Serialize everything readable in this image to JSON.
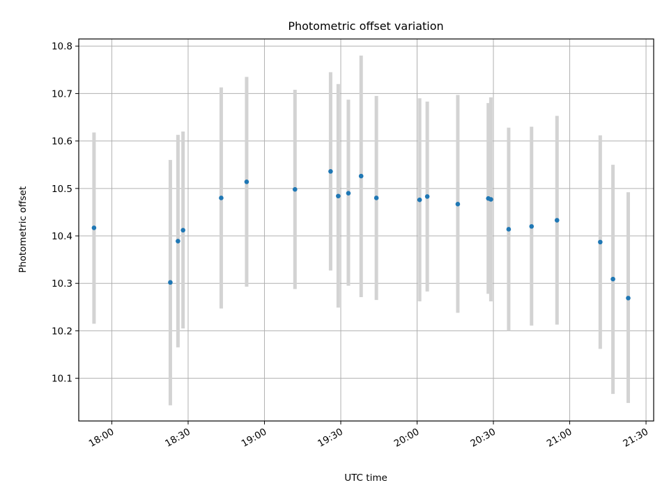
{
  "chart_data": {
    "type": "scatter",
    "title": "Photometric offset variation",
    "xlabel": "UTC time",
    "ylabel": "Photometric offset",
    "x_type": "time",
    "xlim": [
      "17:47",
      "21:33"
    ],
    "ylim": [
      10.01,
      10.815
    ],
    "grid": true,
    "x_ticks": [
      "18:00",
      "18:30",
      "19:00",
      "19:30",
      "20:00",
      "20:30",
      "21:00",
      "21:30"
    ],
    "y_ticks": [
      10.1,
      10.2,
      10.3,
      10.4,
      10.5,
      10.6,
      10.7,
      10.8
    ],
    "y_tick_labels": [
      "10.1",
      "10.2",
      "10.3",
      "10.4",
      "10.5",
      "10.6",
      "10.7",
      "10.8"
    ],
    "point_color": "#1f77b4",
    "errorbar_color": "#d3d3d3",
    "series": [
      {
        "points": [
          {
            "x": "17:53",
            "y": 10.417,
            "ylow": 10.215,
            "yhigh": 10.618
          },
          {
            "x": "18:23",
            "y": 10.302,
            "ylow": 10.043,
            "yhigh": 10.56
          },
          {
            "x": "18:26",
            "y": 10.389,
            "ylow": 10.165,
            "yhigh": 10.613
          },
          {
            "x": "18:28",
            "y": 10.412,
            "ylow": 10.205,
            "yhigh": 10.62
          },
          {
            "x": "18:43",
            "y": 10.48,
            "ylow": 10.247,
            "yhigh": 10.713
          },
          {
            "x": "18:53",
            "y": 10.514,
            "ylow": 10.293,
            "yhigh": 10.735
          },
          {
            "x": "19:12",
            "y": 10.498,
            "ylow": 10.288,
            "yhigh": 10.708
          },
          {
            "x": "19:26",
            "y": 10.536,
            "ylow": 10.327,
            "yhigh": 10.745
          },
          {
            "x": "19:29",
            "y": 10.484,
            "ylow": 10.249,
            "yhigh": 10.72
          },
          {
            "x": "19:33",
            "y": 10.49,
            "ylow": 10.295,
            "yhigh": 10.687
          },
          {
            "x": "19:38",
            "y": 10.526,
            "ylow": 10.271,
            "yhigh": 10.78
          },
          {
            "x": "19:44",
            "y": 10.48,
            "ylow": 10.265,
            "yhigh": 10.695
          },
          {
            "x": "20:01",
            "y": 10.476,
            "ylow": 10.262,
            "yhigh": 10.69
          },
          {
            "x": "20:04",
            "y": 10.483,
            "ylow": 10.283,
            "yhigh": 10.683
          },
          {
            "x": "20:16",
            "y": 10.467,
            "ylow": 10.238,
            "yhigh": 10.697
          },
          {
            "x": "20:28",
            "y": 10.479,
            "ylow": 10.278,
            "yhigh": 10.68
          },
          {
            "x": "20:29",
            "y": 10.477,
            "ylow": 10.262,
            "yhigh": 10.692
          },
          {
            "x": "20:36",
            "y": 10.414,
            "ylow": 10.2,
            "yhigh": 10.628
          },
          {
            "x": "20:45",
            "y": 10.42,
            "ylow": 10.211,
            "yhigh": 10.63
          },
          {
            "x": "20:55",
            "y": 10.433,
            "ylow": 10.213,
            "yhigh": 10.653
          },
          {
            "x": "21:12",
            "y": 10.387,
            "ylow": 10.162,
            "yhigh": 10.612
          },
          {
            "x": "21:17",
            "y": 10.309,
            "ylow": 10.067,
            "yhigh": 10.55
          },
          {
            "x": "21:23",
            "y": 10.269,
            "ylow": 10.048,
            "yhigh": 10.492
          }
        ]
      }
    ]
  }
}
